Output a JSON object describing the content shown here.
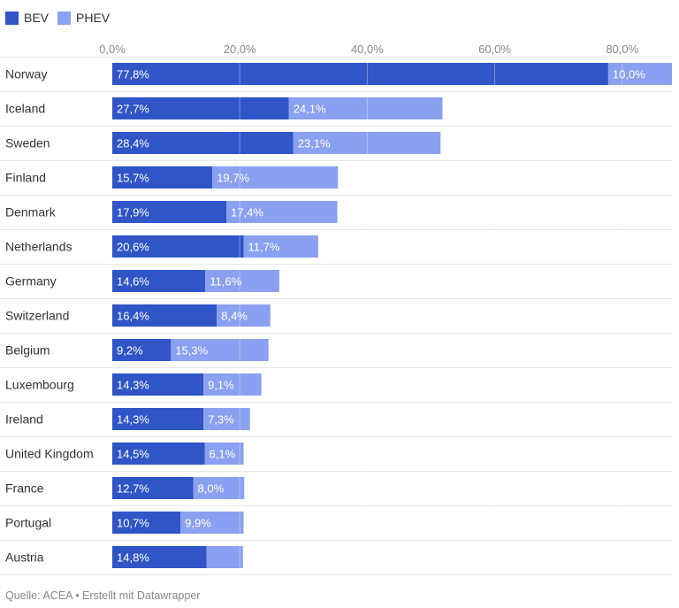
{
  "legend": {
    "bev_label": "BEV",
    "phev_label": "PHEV"
  },
  "source": "Quelle: ACEA • Erstellt mit Datawrapper",
  "chart_data": {
    "type": "bar",
    "orientation": "horizontal",
    "stacked": true,
    "categories": [
      "Norway",
      "Iceland",
      "Sweden",
      "Finland",
      "Denmark",
      "Netherlands",
      "Germany",
      "Switzerland",
      "Belgium",
      "Luxembourg",
      "Ireland",
      "United Kingdom",
      "France",
      "Portugal",
      "Austria"
    ],
    "series": [
      {
        "name": "BEV",
        "color": "#2f55c7",
        "values": [
          77.8,
          27.7,
          28.4,
          15.7,
          17.9,
          20.6,
          14.6,
          16.4,
          9.2,
          14.3,
          14.3,
          14.5,
          12.7,
          10.7,
          14.8
        ],
        "labels": [
          "77,8%",
          "27,7%",
          "28,4%",
          "15,7%",
          "17,9%",
          "20,6%",
          "14,6%",
          "16,4%",
          "9,2%",
          "14,3%",
          "14,3%",
          "14,5%",
          "12,7%",
          "10,7%",
          "14,8%"
        ]
      },
      {
        "name": "PHEV",
        "color": "#8aa0f0",
        "values": [
          10.0,
          24.1,
          23.1,
          19.7,
          17.4,
          11.7,
          11.6,
          8.4,
          15.3,
          9.1,
          7.3,
          6.1,
          8.0,
          9.9,
          5.7
        ],
        "labels": [
          "10,0%",
          "24,1%",
          "23,1%",
          "19,7%",
          "17,4%",
          "11,7%",
          "11,6%",
          "8,4%",
          "15,3%",
          "9,1%",
          "7,3%",
          "6,1%",
          "8,0%",
          "9,9%",
          ""
        ]
      }
    ],
    "xlim": [
      0,
      87.8
    ],
    "xticks": [
      0,
      20,
      40,
      60,
      80
    ],
    "xtick_labels": [
      "0,0%",
      "20,0%",
      "40,0%",
      "60,0%",
      "80,0%"
    ],
    "grid": true,
    "legend_position": "top-left"
  }
}
